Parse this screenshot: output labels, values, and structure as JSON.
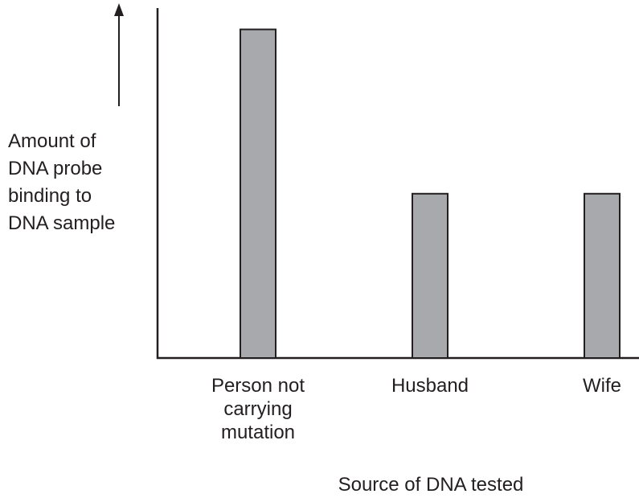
{
  "chart_data": {
    "type": "bar",
    "y_label": "Amount of DNA probe binding to DNA sample",
    "x_label": "Source of DNA tested",
    "categories": [
      "Person not carrying mutation",
      "Husband",
      "Wife"
    ],
    "values": [
      2,
      1,
      1
    ],
    "color": "#a7a9ac",
    "ylim": [
      0,
      2.13
    ]
  }
}
